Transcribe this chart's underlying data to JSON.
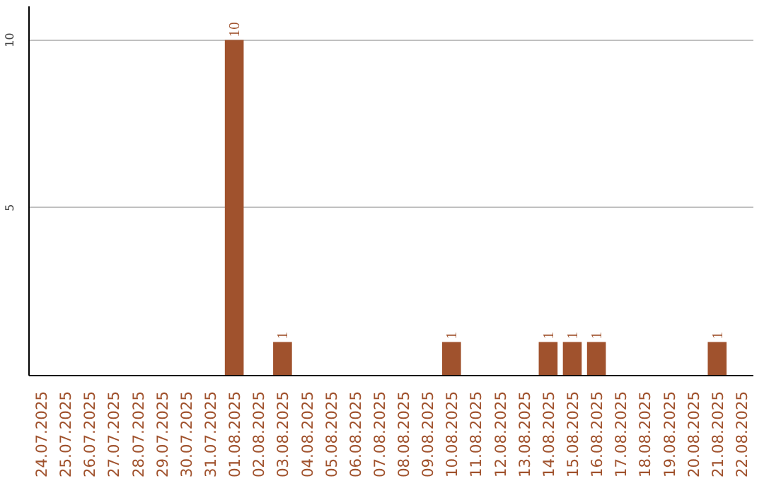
{
  "chart_data": {
    "type": "bar",
    "categories": [
      "24.07.2025",
      "25.07.2025",
      "26.07.2025",
      "27.07.2025",
      "28.07.2025",
      "29.07.2025",
      "30.07.2025",
      "31.07.2025",
      "01.08.2025",
      "02.08.2025",
      "03.08.2025",
      "04.08.2025",
      "05.08.2025",
      "06.08.2025",
      "07.08.2025",
      "08.08.2025",
      "09.08.2025",
      "10.08.2025",
      "11.08.2025",
      "12.08.2025",
      "13.08.2025",
      "14.08.2025",
      "15.08.2025",
      "16.08.2025",
      "17.08.2025",
      "18.08.2025",
      "19.08.2025",
      "20.08.2025",
      "21.08.2025",
      "22.08.2025"
    ],
    "values": [
      0,
      0,
      0,
      0,
      0,
      0,
      0,
      0,
      10,
      0,
      1,
      0,
      0,
      0,
      0,
      0,
      0,
      1,
      0,
      0,
      0,
      1,
      1,
      1,
      0,
      0,
      0,
      0,
      1,
      0
    ],
    "value_labels": [
      null,
      null,
      null,
      null,
      null,
      null,
      null,
      null,
      "10",
      null,
      "1",
      null,
      null,
      null,
      null,
      null,
      null,
      "1",
      null,
      null,
      null,
      "1",
      "1",
      "1",
      null,
      null,
      null,
      null,
      "1",
      null
    ],
    "color": "#a0522d",
    "ylim": [
      0,
      11
    ],
    "yticks": [
      5,
      10
    ],
    "grid": "y"
  }
}
